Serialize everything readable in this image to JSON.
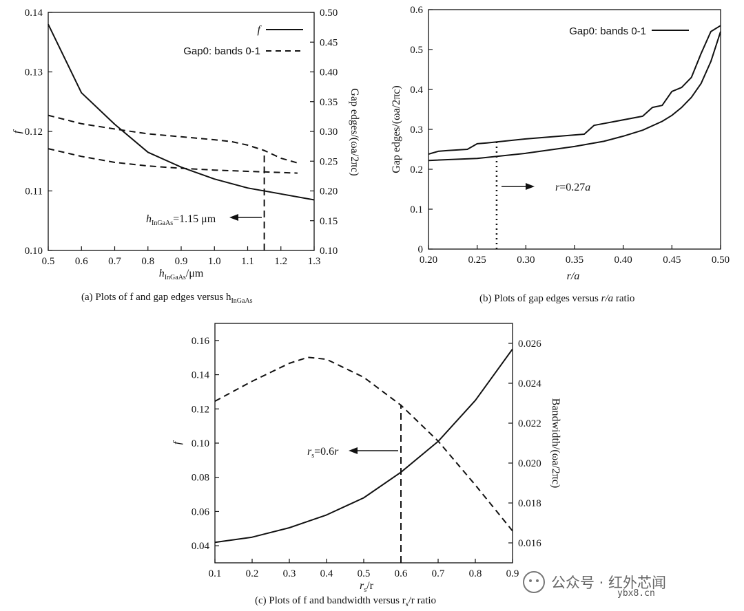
{
  "chart_data": [
    {
      "id": "a",
      "type": "line",
      "caption": "(a) Plots of f and gap edges versus h",
      "caption_sub": "InGaAs",
      "xlabel": "h",
      "xlabel_sub": "InGaAs",
      "xlabel_unit": "/μm",
      "ylabel_left": "f",
      "ylabel_right": "Gap edges/(ωa/2πc)",
      "xlim": [
        0.5,
        1.3
      ],
      "ylim_left": [
        0.1,
        0.14
      ],
      "ylim_right": [
        0.1,
        0.5
      ],
      "xticks": [
        "0.5",
        "0.6",
        "0.7",
        "0.8",
        "0.9",
        "1.0",
        "1.1",
        "1.2",
        "1.3"
      ],
      "yticks_left": [
        "0.10",
        "0.11",
        "0.12",
        "0.13",
        "0.14"
      ],
      "yticks_right": [
        "0.10",
        "0.15",
        "0.20",
        "0.25",
        "0.30",
        "0.35",
        "0.40",
        "0.45",
        "0.50"
      ],
      "legend": [
        {
          "label": "f",
          "style": "solid"
        },
        {
          "label": "Gap0: bands 0-1",
          "style": "dashed"
        }
      ],
      "series": [
        {
          "name": "f",
          "axis": "left",
          "style": "solid",
          "x": [
            0.5,
            0.6,
            0.7,
            0.8,
            0.9,
            1.0,
            1.1,
            1.2,
            1.3
          ],
          "y": [
            0.138,
            0.1265,
            0.1212,
            0.1165,
            0.114,
            0.112,
            0.1105,
            0.1095,
            0.1085
          ]
        },
        {
          "name": "Gap0 upper edge",
          "axis": "right",
          "style": "dashed",
          "x": [
            0.5,
            0.6,
            0.7,
            0.8,
            0.9,
            1.0,
            1.05,
            1.1,
            1.15,
            1.2,
            1.25
          ],
          "y": [
            0.327,
            0.313,
            0.304,
            0.296,
            0.291,
            0.286,
            0.283,
            0.277,
            0.268,
            0.255,
            0.247
          ]
        },
        {
          "name": "Gap0 lower edge",
          "axis": "right",
          "style": "dashed",
          "x": [
            0.5,
            0.6,
            0.7,
            0.8,
            0.9,
            1.0,
            1.1,
            1.2,
            1.25
          ],
          "y": [
            0.271,
            0.258,
            0.248,
            0.242,
            0.238,
            0.235,
            0.233,
            0.231,
            0.23
          ]
        }
      ],
      "marker": {
        "x": 1.15,
        "y_right_from": 0.1,
        "y_right_to": 0.268
      },
      "annotation": {
        "prefix": "h",
        "sub": "InGaAs",
        "text": "=1.15 μm"
      }
    },
    {
      "id": "b",
      "type": "line",
      "caption": "(b) Plots of gap edges versus",
      "caption_var": "r/a",
      "caption_suffix": "ratio",
      "xlabel": "r/a",
      "ylabel": "Gap edges/(ωa/2πc)",
      "xlim": [
        0.2,
        0.5
      ],
      "ylim": [
        0,
        0.6
      ],
      "xticks": [
        "0.20",
        "0.25",
        "0.30",
        "0.35",
        "0.40",
        "0.45",
        "0.50"
      ],
      "yticks": [
        "0",
        "0.1",
        "0.2",
        "0.3",
        "0.4",
        "0.5",
        "0.6"
      ],
      "legend": [
        {
          "label": "Gap0: bands 0-1",
          "style": "solid"
        }
      ],
      "series": [
        {
          "name": "Gap0 upper edge",
          "style": "solid",
          "x": [
            0.2,
            0.21,
            0.22,
            0.24,
            0.25,
            0.26,
            0.3,
            0.36,
            0.37,
            0.42,
            0.43,
            0.44,
            0.45,
            0.46,
            0.47,
            0.48,
            0.49,
            0.5
          ],
          "y": [
            0.238,
            0.245,
            0.247,
            0.25,
            0.264,
            0.266,
            0.276,
            0.288,
            0.31,
            0.333,
            0.355,
            0.36,
            0.395,
            0.405,
            0.43,
            0.49,
            0.545,
            0.56
          ]
        },
        {
          "name": "Gap0 lower edge",
          "style": "solid",
          "x": [
            0.2,
            0.25,
            0.3,
            0.35,
            0.38,
            0.4,
            0.42,
            0.44,
            0.45,
            0.46,
            0.47,
            0.48,
            0.49,
            0.5
          ],
          "y": [
            0.222,
            0.227,
            0.24,
            0.257,
            0.27,
            0.283,
            0.298,
            0.32,
            0.335,
            0.355,
            0.38,
            0.415,
            0.47,
            0.545
          ]
        }
      ],
      "marker": {
        "x": 0.27,
        "y_from": 0,
        "y_to": 0.268
      },
      "annotation": {
        "var": "r",
        "text": "=0.27",
        "var2": "a"
      }
    },
    {
      "id": "c",
      "type": "line",
      "caption": "(c) Plots of f and bandwidth versus r",
      "caption_sub": "s",
      "caption_suffix": "/r ratio",
      "xlabel": "r",
      "xlabel_sub": "s",
      "xlabel_suffix": "/r",
      "ylabel_left": "f",
      "ylabel_right": "Bandwidth/(ωa/2πc)",
      "xlim": [
        0.1,
        0.9
      ],
      "ylim_left": [
        0.03,
        0.17
      ],
      "ylim_right": [
        0.015,
        0.027
      ],
      "xticks": [
        "0.1",
        "0.2",
        "0.3",
        "0.4",
        "0.5",
        "0.6",
        "0.7",
        "0.8",
        "0.9"
      ],
      "yticks_left": [
        "0.04",
        "0.06",
        "0.08",
        "0.10",
        "0.12",
        "0.14",
        "0.16"
      ],
      "yticks_right": [
        "0.016",
        "0.018",
        "0.020",
        "0.022",
        "0.024",
        "0.026"
      ],
      "series": [
        {
          "name": "f",
          "axis": "left",
          "style": "solid",
          "x": [
            0.1,
            0.2,
            0.3,
            0.4,
            0.5,
            0.6,
            0.7,
            0.8,
            0.9
          ],
          "y": [
            0.042,
            0.045,
            0.0505,
            0.058,
            0.068,
            0.083,
            0.101,
            0.125,
            0.155
          ]
        },
        {
          "name": "Bandwidth",
          "axis": "right",
          "style": "dashed",
          "x": [
            0.1,
            0.2,
            0.3,
            0.35,
            0.4,
            0.5,
            0.6,
            0.7,
            0.8,
            0.9
          ],
          "y": [
            0.0231,
            0.0241,
            0.025,
            0.0253,
            0.0252,
            0.0243,
            0.0229,
            0.0211,
            0.0189,
            0.0166
          ]
        }
      ],
      "marker": {
        "x": 0.6,
        "y_right_from": 0.015,
        "y_right_to": 0.0229
      },
      "annotation": {
        "var": "r",
        "sub": "s",
        "text": "=0.6",
        "var2": "r"
      }
    }
  ],
  "watermark": {
    "text": "公众号 · 红外芯闻",
    "site": "ybx8.cn"
  }
}
